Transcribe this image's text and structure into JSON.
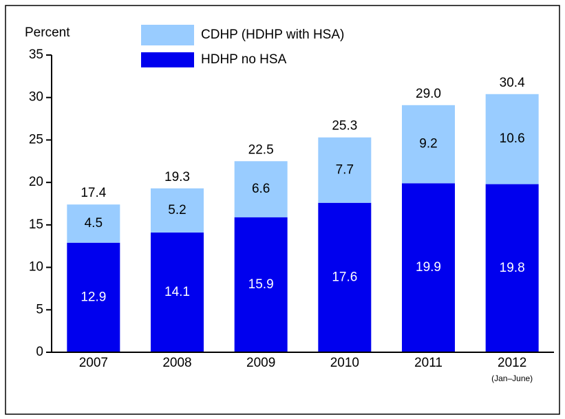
{
  "chart_data": {
    "type": "stacked_bar",
    "y_label": "Percent",
    "categories": [
      "2007",
      "2008",
      "2009",
      "2010",
      "2011",
      "2012"
    ],
    "category_notes": [
      null,
      null,
      null,
      null,
      null,
      "(Jan–June)"
    ],
    "series": [
      {
        "name": "HDHP no HSA",
        "color": "#0000ee",
        "label_color": "#ffffff",
        "values": [
          12.9,
          14.1,
          15.9,
          17.6,
          19.9,
          19.8
        ]
      },
      {
        "name": "CDHP (HDHP with HSA)",
        "color": "#99ccff",
        "label_color": "#000000",
        "values": [
          4.5,
          5.2,
          6.6,
          7.7,
          9.2,
          10.6
        ]
      }
    ],
    "totals": [
      17.4,
      19.3,
      22.5,
      25.3,
      {
        "value": 29.0,
        "label": "29.0"
      },
      30.4
    ],
    "ylim": [
      0,
      35
    ],
    "yticks": [
      0,
      5,
      10,
      15,
      20,
      25,
      30,
      35
    ]
  }
}
